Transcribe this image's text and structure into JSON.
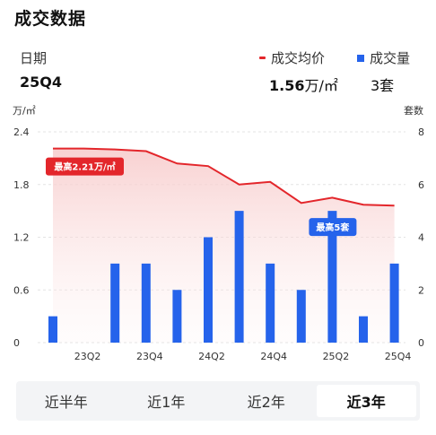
{
  "header": {
    "title": "成交数据"
  },
  "summary": {
    "period_label": "日期",
    "period_value": "25Q4",
    "price_legend": "成交均价",
    "volume_legend": "成交量",
    "price_number": "1.56",
    "price_unit": "万/㎡",
    "volume_value": "3套"
  },
  "colors": {
    "price_line": "#e3262b",
    "volume_bar": "#2563eb",
    "badge_price": "#e3262b",
    "badge_volume": "#2563eb"
  },
  "badges": {
    "max_price": "最高2.21万/㎡",
    "max_volume": "最高5套"
  },
  "tabs": [
    {
      "label": "近半年",
      "active": false
    },
    {
      "label": "近1年",
      "active": false
    },
    {
      "label": "近2年",
      "active": false
    },
    {
      "label": "近3年",
      "active": true
    }
  ],
  "chart_data": {
    "type": "bar",
    "left_axis_label": "万/㎡",
    "right_axis_label": "套数",
    "left_ticks": [
      "2.4",
      "1.8",
      "1.2",
      "0.6",
      "0"
    ],
    "right_ticks": [
      "8",
      "6",
      "4",
      "2",
      "0"
    ],
    "left_ylim": [
      0,
      2.4
    ],
    "right_ylim": [
      0,
      8
    ],
    "x_tick_labels": [
      "23Q2",
      "23Q4",
      "24Q2",
      "24Q4",
      "25Q2",
      "25Q4"
    ],
    "categories": [
      "23Q1",
      "23Q2",
      "23Q3",
      "23Q4",
      "24Q1",
      "24Q2",
      "24Q3",
      "24Q4",
      "25Q1",
      "25Q2",
      "25Q3",
      "25Q4"
    ],
    "series": [
      {
        "name": "成交均价",
        "type": "area-line",
        "axis": "left",
        "values": [
          2.21,
          2.21,
          2.2,
          2.18,
          2.04,
          2.01,
          1.8,
          1.83,
          1.59,
          1.65,
          1.57,
          1.56
        ]
      },
      {
        "name": "成交量",
        "type": "bar",
        "axis": "right",
        "values": [
          1,
          0,
          3,
          3,
          2,
          4,
          5,
          3,
          2,
          5,
          1,
          3
        ]
      }
    ],
    "grid": true
  }
}
